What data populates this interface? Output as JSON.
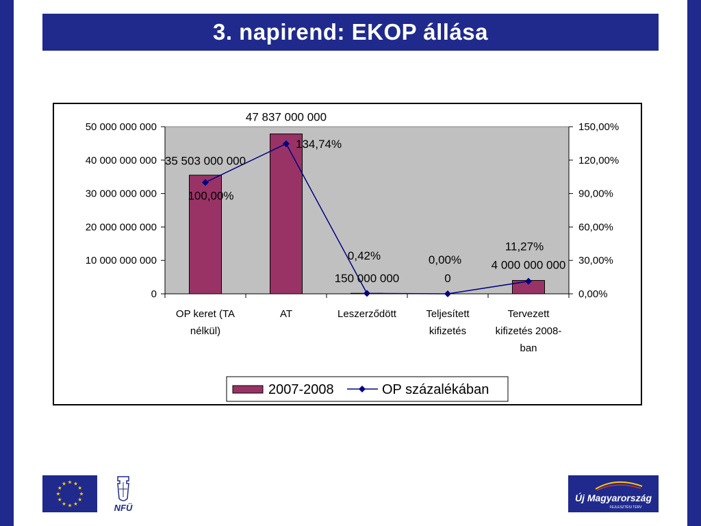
{
  "slide": {
    "title": "3. napirend: EKOP állása"
  },
  "colors": {
    "brand_blue": "#1f2a8c",
    "bar_fill": "#993366",
    "line_color": "#000080",
    "plot_bg": "#c0c0c0"
  },
  "chart_data": {
    "type": "bar",
    "title": "",
    "categories": [
      [
        "OP keret (TA",
        "nélkül)"
      ],
      [
        "AT"
      ],
      [
        "Leszerződött"
      ],
      [
        "Teljesített",
        "kifizetés"
      ],
      [
        "Tervezett",
        "kifizetés 2008-",
        "ban"
      ]
    ],
    "series": [
      {
        "name": "2007-2008",
        "type": "bar",
        "axis": "left",
        "values": [
          35503000000,
          47837000000,
          150000000,
          0,
          4000000000
        ],
        "labels": [
          "35 503 000 000",
          "47 837 000 000",
          "150 000 000",
          "0",
          "4 000 000 000"
        ]
      },
      {
        "name": "OP százalékában",
        "type": "line",
        "axis": "right",
        "values": [
          100.0,
          134.74,
          0.42,
          0.0,
          11.27
        ],
        "labels": [
          "100,00%",
          "134,74%",
          "0,42%",
          "0,00%",
          "11,27%"
        ]
      }
    ],
    "y_left": {
      "lim": [
        0,
        50000000000
      ],
      "ticks": [
        0,
        10000000000,
        20000000000,
        30000000000,
        40000000000,
        50000000000
      ],
      "tick_labels": [
        "0",
        "10 000 000 000",
        "20 000 000 000",
        "30 000 000 000",
        "40 000 000 000",
        "50 000 000 000"
      ]
    },
    "y_right": {
      "lim": [
        0,
        150
      ],
      "ticks": [
        0,
        30,
        60,
        90,
        120,
        150
      ],
      "tick_labels": [
        "0,00%",
        "30,00%",
        "60,00%",
        "90,00%",
        "120,00%",
        "150,00%"
      ]
    },
    "xlabel": "",
    "ylabel": "",
    "grid": false,
    "legend_position": "bottom"
  },
  "logos": {
    "nfu_text": "NFÜ",
    "um_line1": "Új Magyarország",
    "um_line2": "FEJLESZTÉSI TERV"
  }
}
